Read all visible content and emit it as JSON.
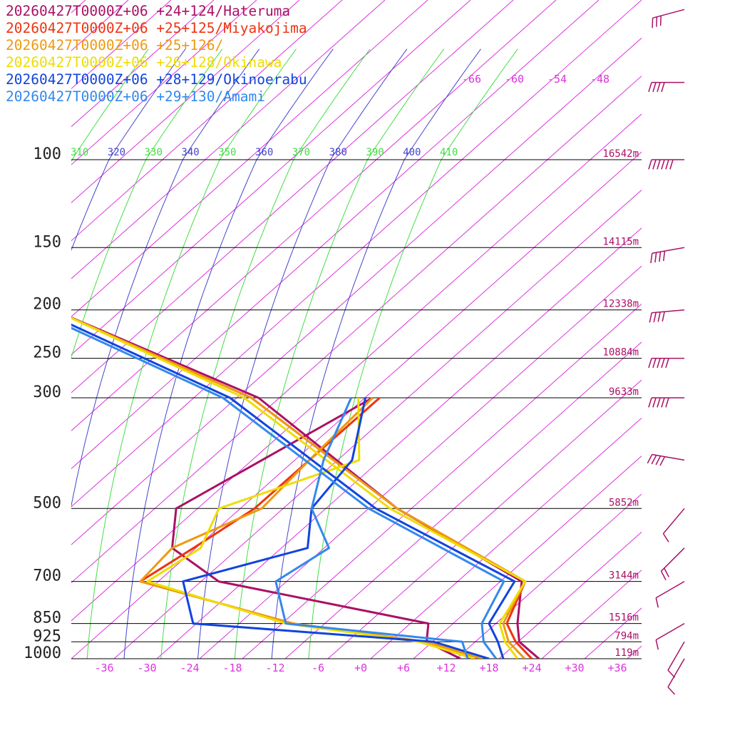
{
  "chart_data": {
    "type": "line",
    "title": "",
    "xlabel": "",
    "ylabel": "",
    "x_ticks": [
      "-36",
      "-30",
      "-24",
      "-18",
      "-12",
      "-6",
      "+0",
      "+6",
      "+12",
      "+18",
      "+24",
      "+30",
      "+36"
    ],
    "x_tick_values": [
      -36,
      -30,
      -24,
      -18,
      -12,
      -6,
      0,
      6,
      12,
      18,
      24,
      30,
      36
    ],
    "pressure_levels": [
      {
        "p": 100,
        "label": "100",
        "height": "16542m"
      },
      {
        "p": 150,
        "label": "150",
        "height": "14115m"
      },
      {
        "p": 200,
        "label": "200",
        "height": "12338m"
      },
      {
        "p": 250,
        "label": "250",
        "height": "10884m"
      },
      {
        "p": 300,
        "label": "300",
        "height": "9633m"
      },
      {
        "p": 500,
        "label": "500",
        "height": "5852m"
      },
      {
        "p": 700,
        "label": "700",
        "height": "3144m"
      },
      {
        "p": 850,
        "label": "850",
        "height": "1516m"
      },
      {
        "p": 925,
        "label": "925",
        "height": "794m"
      },
      {
        "p": 1000,
        "label": "1000",
        "height": "119m"
      }
    ],
    "theta_e_labels": [
      "310",
      "320",
      "330",
      "340",
      "350",
      "360",
      "370",
      "380",
      "390",
      "400",
      "410"
    ],
    "theta_e_values": [
      310,
      320,
      330,
      340,
      350,
      360,
      370,
      380,
      390,
      400,
      410
    ],
    "theta_e_colors": [
      "#44dd44",
      "#4444cc",
      "#44dd44",
      "#4444cc",
      "#44dd44",
      "#4444cc",
      "#44dd44",
      "#4444cc",
      "#44dd44",
      "#4444cc",
      "#44dd44"
    ],
    "upper_temp_labels": [
      "-66",
      "-60",
      "-54",
      "-48"
    ],
    "upper_temp_values": [
      -66,
      -60,
      -54,
      -48
    ],
    "legend_placement": "top-left",
    "series": [
      {
        "name": "20260427T0000Z+06 +24+124/Hateruma",
        "color": "#aa1166",
        "temperature": [
          [
            1000,
            25
          ],
          [
            925,
            22
          ],
          [
            850,
            21.5
          ],
          [
            700,
            21.5
          ],
          [
            500,
            3
          ],
          [
            300,
            -18
          ],
          [
            200,
            -48
          ],
          [
            150,
            -60
          ],
          [
            100,
            -66
          ],
          [
            70,
            -66
          ],
          [
            50,
            -60
          ]
        ],
        "dewpoint": [
          [
            1000,
            14
          ],
          [
            925,
            9
          ],
          [
            850,
            9
          ],
          [
            700,
            -21
          ],
          [
            600,
            -28
          ],
          [
            500,
            -28
          ],
          [
            300,
            -2
          ]
        ],
        "wind": [
          [
            1000,
            210,
            15
          ],
          [
            925,
            210,
            10
          ],
          [
            850,
            240,
            10
          ],
          [
            700,
            240,
            15
          ],
          [
            600,
            225,
            20
          ],
          [
            500,
            220,
            15
          ],
          [
            400,
            280,
            45
          ],
          [
            300,
            270,
            55
          ],
          [
            250,
            270,
            55
          ],
          [
            200,
            265,
            45
          ],
          [
            150,
            260,
            40
          ],
          [
            100,
            270,
            60
          ],
          [
            70,
            270,
            40
          ],
          [
            50,
            255,
            30
          ]
        ]
      },
      {
        "name": "20260427T0000Z+06 +25+125/Miyakojima",
        "color": "#ee3311",
        "temperature": [
          [
            1000,
            24
          ],
          [
            925,
            21.5
          ],
          [
            850,
            20
          ],
          [
            700,
            22
          ],
          [
            500,
            3
          ],
          [
            300,
            -19
          ],
          [
            200,
            -48
          ],
          [
            150,
            -60
          ],
          [
            100,
            -67
          ],
          [
            50,
            -60
          ]
        ],
        "dewpoint": [
          [
            1000,
            16
          ],
          [
            925,
            8
          ],
          [
            850,
            -10
          ],
          [
            700,
            -32
          ],
          [
            600,
            -25
          ],
          [
            500,
            -17
          ],
          [
            400,
            -10
          ],
          [
            300,
            -1
          ]
        ]
      },
      {
        "name": "20260427T0000Z+06 +25+126/",
        "color": "#ee9911",
        "temperature": [
          [
            1000,
            23
          ],
          [
            925,
            20.5
          ],
          [
            850,
            19.5
          ],
          [
            700,
            22
          ],
          [
            500,
            3
          ],
          [
            300,
            -19
          ],
          [
            200,
            -48
          ],
          [
            150,
            -60
          ],
          [
            100,
            -67
          ],
          [
            50,
            -60
          ]
        ],
        "dewpoint": [
          [
            1000,
            17
          ],
          [
            925,
            9
          ],
          [
            850,
            -10
          ],
          [
            700,
            -32
          ],
          [
            600,
            -28
          ],
          [
            500,
            -16
          ],
          [
            400,
            -10
          ],
          [
            300,
            -2
          ]
        ]
      },
      {
        "name": "20260427T0000Z+06 +26+128/Okinawa",
        "color": "#eedd00",
        "temperature": [
          [
            1000,
            22
          ],
          [
            925,
            20
          ],
          [
            850,
            19
          ],
          [
            700,
            22
          ],
          [
            500,
            2
          ],
          [
            300,
            -20
          ],
          [
            200,
            -48
          ],
          [
            150,
            -61
          ],
          [
            100,
            -68
          ],
          [
            50,
            -61
          ]
        ],
        "dewpoint": [
          [
            1000,
            16
          ],
          [
            925,
            8
          ],
          [
            850,
            -11
          ],
          [
            700,
            -31
          ],
          [
            600,
            -24
          ],
          [
            500,
            -22
          ],
          [
            400,
            -3
          ],
          [
            300,
            -4
          ]
        ]
      },
      {
        "name": "20260427T0000Z+06 +28+129/Okinoerabu",
        "color": "#1144dd",
        "temperature": [
          [
            1000,
            20
          ],
          [
            925,
            19
          ],
          [
            850,
            17.5
          ],
          [
            700,
            20.5
          ],
          [
            500,
            0
          ],
          [
            300,
            -22
          ],
          [
            200,
            -50
          ],
          [
            150,
            -64
          ],
          [
            100,
            -69
          ],
          [
            70,
            -68
          ],
          [
            50,
            -60
          ]
        ],
        "dewpoint": [
          [
            1000,
            18
          ],
          [
            925,
            10
          ],
          [
            850,
            -24
          ],
          [
            700,
            -26
          ],
          [
            600,
            -9
          ],
          [
            500,
            -9
          ],
          [
            400,
            -4
          ],
          [
            300,
            -3
          ]
        ]
      },
      {
        "name": "20260427T0000Z+06 +29+130/Amami",
        "color": "#3388ee",
        "temperature": [
          [
            1000,
            19
          ],
          [
            925,
            17
          ],
          [
            850,
            16.5
          ],
          [
            700,
            19
          ],
          [
            500,
            -1
          ],
          [
            300,
            -23
          ],
          [
            200,
            -51
          ],
          [
            150,
            -65
          ],
          [
            100,
            -68
          ],
          [
            70,
            -66
          ],
          [
            50,
            -59
          ]
        ],
        "dewpoint": [
          [
            1000,
            15
          ],
          [
            925,
            14
          ],
          [
            850,
            -11
          ],
          [
            700,
            -13
          ],
          [
            600,
            -6
          ],
          [
            500,
            -9
          ],
          [
            400,
            -8
          ],
          [
            300,
            -5
          ]
        ]
      }
    ]
  }
}
